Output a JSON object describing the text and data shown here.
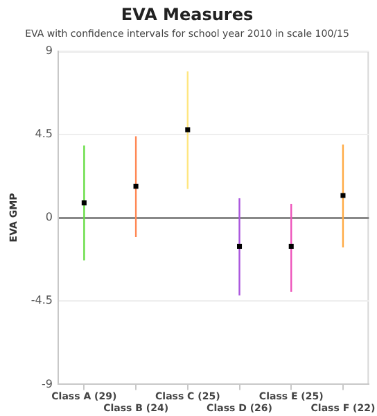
{
  "chart_data": {
    "type": "scatter",
    "title": "EVA Measures",
    "subtitle": "EVA with confidence intervals for school year 2010 in scale 100/15",
    "ylabel": "EVA GMP",
    "categories": [
      "Class A (29)",
      "Class B (24)",
      "Class C (25)",
      "Class D (26)",
      "Class E (25)",
      "Class F (22)"
    ],
    "series": [
      {
        "type": "line",
        "marker": "none",
        "color": "#66dd44",
        "x": [
          "Class A (29)",
          "Class A (29)"
        ],
        "values": [
          -2.3,
          3.9
        ]
      },
      {
        "type": "line",
        "marker": "none",
        "color": "#ff8855",
        "x": [
          "Class B (24)",
          "Class B (24)"
        ],
        "values": [
          -1.05,
          4.4
        ]
      },
      {
        "type": "line",
        "marker": "none",
        "color": "#ffe680",
        "x": [
          "Class C (25)",
          "Class C (25)"
        ],
        "values": [
          1.55,
          7.9
        ]
      },
      {
        "type": "line",
        "marker": "none",
        "color": "#aa55dd",
        "x": [
          "Class D (26)",
          "Class D (26)"
        ],
        "values": [
          -4.2,
          1.05
        ]
      },
      {
        "type": "line",
        "marker": "none",
        "color": "#ee55bb",
        "x": [
          "Class E (25)",
          "Class E (25)"
        ],
        "values": [
          -4.0,
          0.75
        ]
      },
      {
        "type": "line",
        "marker": "none",
        "color": "#ffaa44",
        "x": [
          "Class F (22)",
          "Class F (22)"
        ],
        "values": [
          -1.6,
          3.95
        ]
      },
      {
        "color": "#000000",
        "values": [
          0.8,
          1.7,
          4.75,
          -1.55,
          -1.55,
          1.2
        ]
      }
    ],
    "ylim": [
      -9,
      9
    ],
    "yticks": [
      -9,
      -4.5,
      0,
      4.5,
      9
    ],
    "grid": "y",
    "legend": false,
    "marker": "square"
  }
}
